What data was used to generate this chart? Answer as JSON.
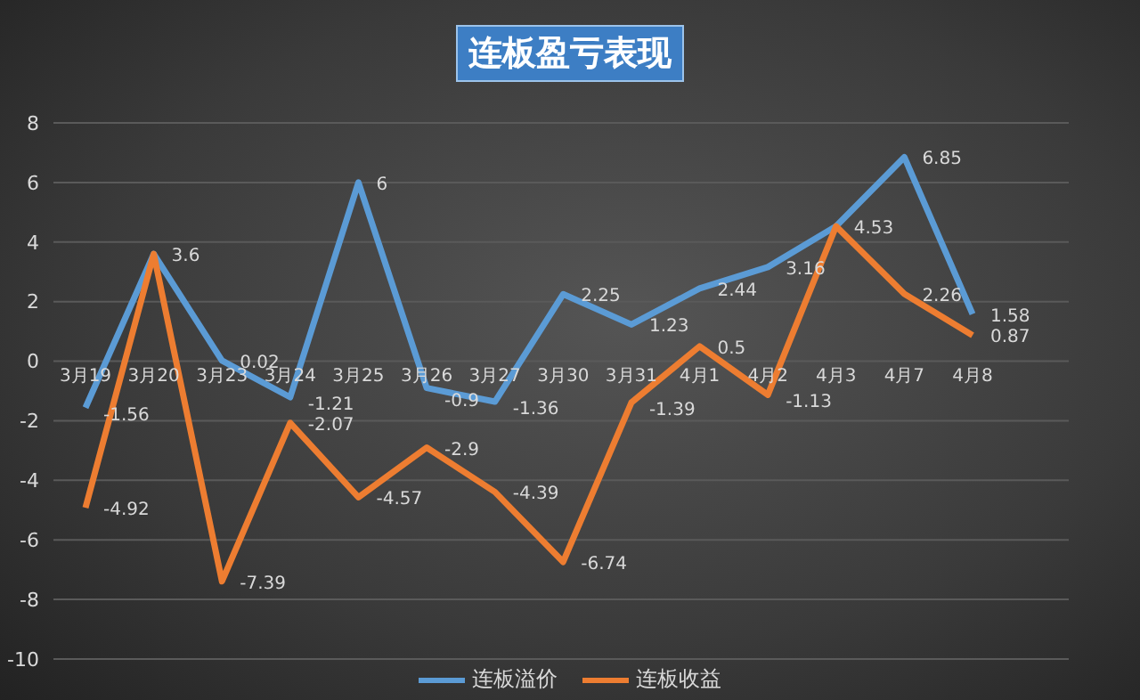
{
  "chart_data": {
    "type": "line",
    "title": "连板盈亏表现",
    "categories": [
      "3月19",
      "3月20",
      "3月23",
      "3月24",
      "3月25",
      "3月26",
      "3月27",
      "3月30",
      "3月31",
      "4月1",
      "4月2",
      "4月3",
      "4月7",
      "4月8"
    ],
    "series": [
      {
        "name": "连板溢价",
        "color": "#5b9bd5",
        "values": [
          -1.56,
          3.6,
          0.02,
          -1.21,
          6,
          -0.9,
          -1.36,
          2.25,
          1.23,
          2.44,
          3.16,
          4.53,
          6.85,
          1.58
        ],
        "value_labels": [
          "-1.56",
          "3.6",
          "0.02",
          "-1.21",
          "6",
          "-0.9",
          "-1.36",
          "2.25",
          "1.23",
          "2.44",
          "3.16",
          "4.53",
          "6.85",
          "1.58"
        ]
      },
      {
        "name": "连板收益",
        "color": "#ed7d31",
        "values": [
          -4.92,
          3.6,
          -7.39,
          -2.07,
          -4.57,
          -2.9,
          -4.39,
          -6.74,
          -1.39,
          0.5,
          -1.13,
          4.53,
          2.26,
          0.87
        ],
        "value_labels": [
          "-4.92",
          null,
          "-7.39",
          "-2.07",
          "-4.57",
          "-2.9",
          "-4.39",
          "-6.74",
          "-1.39",
          "0.5",
          "-1.13",
          null,
          "2.26",
          "0.87"
        ]
      }
    ],
    "ylim": [
      -10,
      8
    ],
    "yticks": [
      -10,
      -8,
      -6,
      -4,
      -2,
      0,
      2,
      4,
      6,
      8
    ],
    "grid": "y",
    "legend": "bottom",
    "marker": "none",
    "line_style": "solid"
  }
}
